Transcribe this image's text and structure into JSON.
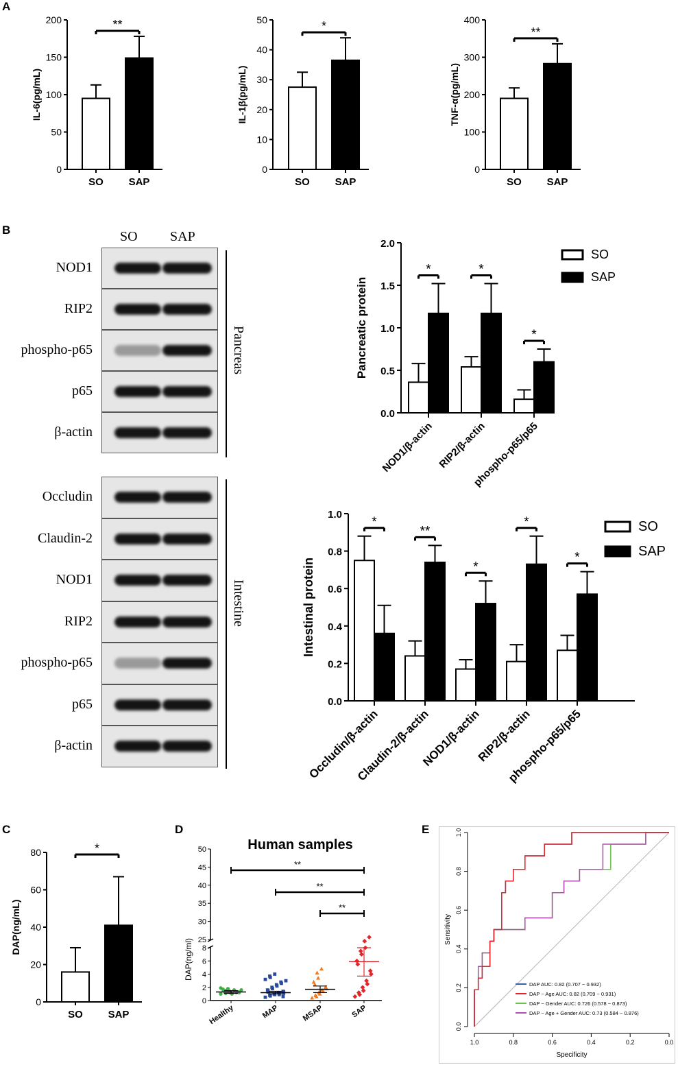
{
  "panel_labels": {
    "A": "A",
    "B": "B",
    "C": "C",
    "D": "D",
    "E": "E"
  },
  "blot": {
    "columns": [
      "SO",
      "SAP"
    ],
    "pancreas_label": "Pancreas",
    "intestine_label": "Intestine",
    "pancreas_rows": [
      "NOD1",
      "RIP2",
      "phospho-p65",
      "p65",
      "β-actin"
    ],
    "intestine_rows": [
      "Occludin",
      "Claudin-2",
      "NOD1",
      "RIP2",
      "phospho-p65",
      "p65",
      "β-actin"
    ]
  },
  "chart_data": [
    {
      "id": "A1",
      "type": "bar",
      "ylabel": "IL-6(pg/mL)",
      "ylim": [
        0,
        200
      ],
      "yticks": [
        0,
        50,
        100,
        150,
        200
      ],
      "categories": [
        "SO",
        "SAP"
      ],
      "values": [
        95,
        149
      ],
      "errors": [
        18,
        29
      ],
      "significance": [
        "**"
      ]
    },
    {
      "id": "A2",
      "type": "bar",
      "ylabel": "IL-1β(pg/mL)",
      "ylim": [
        0,
        50
      ],
      "yticks": [
        0,
        10,
        20,
        30,
        40,
        50
      ],
      "categories": [
        "SO",
        "SAP"
      ],
      "values": [
        27.5,
        36.5
      ],
      "errors": [
        5,
        7.5
      ],
      "significance": [
        "*"
      ]
    },
    {
      "id": "A3",
      "type": "bar",
      "ylabel": "TNF-α(pg/mL)",
      "ylim": [
        0,
        400
      ],
      "yticks": [
        0,
        100,
        200,
        300,
        400
      ],
      "categories": [
        "SO",
        "SAP"
      ],
      "values": [
        190,
        283
      ],
      "errors": [
        28,
        53
      ],
      "significance": [
        "**"
      ]
    },
    {
      "id": "B1",
      "type": "bar",
      "ylabel": "Pancreatic protein",
      "ylim": [
        0,
        2.0
      ],
      "yticks": [
        "0.0",
        "0.5",
        "1.0",
        "1.5",
        "2.0"
      ],
      "categories": [
        "NOD1/β-actin",
        "RIP2/β-actin",
        "phospho-p65/p65"
      ],
      "series": [
        {
          "name": "SO",
          "values": [
            0.36,
            0.54,
            0.16
          ],
          "errors": [
            0.22,
            0.12,
            0.11
          ]
        },
        {
          "name": "SAP",
          "values": [
            1.17,
            1.17,
            0.6
          ],
          "errors": [
            0.35,
            0.35,
            0.15
          ]
        }
      ],
      "significance": [
        "*",
        "*",
        "*"
      ]
    },
    {
      "id": "B2",
      "type": "bar",
      "ylabel": "Intestinal protein",
      "ylim": [
        0,
        1.0
      ],
      "yticks": [
        "0.0",
        "0.2",
        "0.4",
        "0.6",
        "0.8",
        "1.0"
      ],
      "categories": [
        "Occludin/β-actin",
        "Claudin-2/β-actin",
        "NOD1/β-actin",
        "RIP2/β-actin",
        "phospho-p65/p65"
      ],
      "series": [
        {
          "name": "SO",
          "values": [
            0.75,
            0.24,
            0.17,
            0.21,
            0.27
          ],
          "errors": [
            0.13,
            0.08,
            0.05,
            0.09,
            0.08
          ]
        },
        {
          "name": "SAP",
          "values": [
            0.36,
            0.74,
            0.52,
            0.73,
            0.57
          ],
          "errors": [
            0.15,
            0.09,
            0.12,
            0.15,
            0.12
          ]
        }
      ],
      "significance": [
        "*",
        "**",
        "*",
        "*",
        "*"
      ]
    },
    {
      "id": "C",
      "type": "bar",
      "ylabel": "DAP(ng/mL)",
      "ylim": [
        0,
        80
      ],
      "yticks": [
        0,
        20,
        40,
        60,
        80
      ],
      "categories": [
        "SO",
        "SAP"
      ],
      "values": [
        16,
        41
      ],
      "errors": [
        13,
        26
      ],
      "significance": [
        "*"
      ]
    },
    {
      "id": "D",
      "type": "scatter",
      "title": "Human samples",
      "ylabel": "DAP(ng/ml)",
      "yticks_low": [
        0,
        2,
        4,
        6,
        8
      ],
      "yticks_high": [
        25,
        30,
        35,
        40,
        45,
        50
      ],
      "categories": [
        "Healthy",
        "MAP",
        "MSAP",
        "SAP"
      ],
      "colors": [
        "#3fae49",
        "#2b4a9b",
        "#f07a20",
        "#e3252b"
      ],
      "means": [
        1.3,
        1.2,
        1.7,
        5.9
      ],
      "sem_low": [
        1.1,
        1.0,
        1.2,
        3.7
      ],
      "sem_high": [
        1.5,
        1.4,
        2.2,
        8.0
      ],
      "points": [
        [
          1.0,
          1.1,
          1.2,
          1.3,
          1.4,
          1.5,
          1.6,
          1.2,
          1.3,
          1.5,
          1.7,
          1.8,
          1.4,
          1.1,
          1.0,
          1.3,
          1.2,
          1.6,
          1.9,
          1.5,
          1.4,
          1.3,
          1.2
        ],
        [
          0.5,
          0.7,
          0.8,
          0.9,
          1.0,
          1.1,
          1.2,
          1.3,
          1.4,
          1.5,
          1.6,
          1.8,
          2.0,
          2.2,
          2.4,
          2.6,
          2.8,
          3.0,
          3.2,
          3.5,
          3.7,
          4.0,
          1.0,
          0.9,
          1.2,
          1.1,
          0.6,
          1.3
        ],
        [
          0.4,
          0.6,
          0.8,
          1.0,
          1.2,
          1.4,
          1.6,
          1.8,
          2.0,
          2.4,
          2.8,
          3.4,
          4.2,
          4.8
        ],
        [
          0.6,
          0.9,
          1.2,
          1.5,
          2.0,
          2.5,
          3.0,
          4.0,
          4.5,
          5.5,
          6.0,
          7.0,
          7.5,
          8.0,
          9.0,
          9.6
        ]
      ],
      "significance_pairs": [
        [
          "Healthy",
          "SAP",
          "**"
        ],
        [
          "MAP",
          "SAP",
          "**"
        ],
        [
          "MSAP",
          "SAP",
          "**"
        ]
      ]
    },
    {
      "id": "E",
      "type": "line",
      "xlabel": "Specificity",
      "ylabel": "Sensitivity",
      "xticks": [
        "1.0",
        "0.8",
        "0.6",
        "0.4",
        "0.2",
        "0.0"
      ],
      "yticks": [
        "0.0",
        "0.2",
        "0.4",
        "0.6",
        "0.8",
        "1.0"
      ],
      "series": [
        {
          "name": "DAP AUC: 0.82 (0.707 ~ 0.932)",
          "color": "#3a5fa8",
          "x": [
            1.0,
            1.0,
            0.98,
            0.98,
            0.96,
            0.96,
            0.92,
            0.92,
            0.9,
            0.9,
            0.86,
            0.86,
            0.84,
            0.84,
            0.8,
            0.8,
            0.74,
            0.74,
            0.64,
            0.64,
            0.5,
            0.5,
            0.24,
            0.24,
            0.0
          ],
          "y": [
            0.0,
            0.19,
            0.19,
            0.25,
            0.25,
            0.31,
            0.31,
            0.44,
            0.44,
            0.5,
            0.5,
            0.69,
            0.69,
            0.75,
            0.75,
            0.81,
            0.81,
            0.88,
            0.88,
            0.94,
            0.94,
            1.0,
            1.0,
            1.0,
            1.0
          ]
        },
        {
          "name": "DAP ~ Age AUC: 0.82 (0.709 ~ 0.931)",
          "color": "#e3252b",
          "x": [
            1.0,
            1.0,
            0.98,
            0.98,
            0.96,
            0.96,
            0.92,
            0.92,
            0.9,
            0.9,
            0.86,
            0.86,
            0.84,
            0.84,
            0.8,
            0.8,
            0.74,
            0.74,
            0.64,
            0.64,
            0.5,
            0.5,
            0.24,
            0.24,
            0.0
          ],
          "y": [
            0.0,
            0.19,
            0.19,
            0.25,
            0.25,
            0.31,
            0.31,
            0.44,
            0.44,
            0.5,
            0.5,
            0.69,
            0.69,
            0.75,
            0.75,
            0.81,
            0.81,
            0.88,
            0.88,
            0.94,
            0.94,
            1.0,
            1.0,
            1.0,
            1.0
          ]
        },
        {
          "name": "DAP ~ Gender AUC: 0.726 (0.578 ~ 0.873)",
          "color": "#6cbf4a",
          "x": [
            1.0,
            1.0,
            0.98,
            0.98,
            0.96,
            0.96,
            0.92,
            0.92,
            0.9,
            0.9,
            0.74,
            0.74,
            0.6,
            0.6,
            0.54,
            0.54,
            0.46,
            0.46,
            0.3,
            0.3,
            0.12,
            0.12,
            0.0
          ],
          "y": [
            0.0,
            0.19,
            0.19,
            0.31,
            0.31,
            0.38,
            0.38,
            0.44,
            0.44,
            0.5,
            0.5,
            0.56,
            0.56,
            0.69,
            0.69,
            0.75,
            0.75,
            0.81,
            0.81,
            0.94,
            0.94,
            1.0,
            1.0
          ]
        },
        {
          "name": "DAP ~ Age + Gender AUC: 0.73 (0.584 ~ 0.876)",
          "color": "#b04fb0",
          "x": [
            1.0,
            1.0,
            0.98,
            0.98,
            0.96,
            0.96,
            0.92,
            0.92,
            0.9,
            0.9,
            0.74,
            0.74,
            0.6,
            0.6,
            0.54,
            0.54,
            0.46,
            0.46,
            0.34,
            0.34,
            0.12,
            0.12,
            0.0
          ],
          "y": [
            0.0,
            0.19,
            0.19,
            0.31,
            0.31,
            0.38,
            0.38,
            0.44,
            0.44,
            0.5,
            0.5,
            0.56,
            0.56,
            0.69,
            0.69,
            0.75,
            0.75,
            0.81,
            0.81,
            0.94,
            0.94,
            1.0,
            1.0
          ]
        }
      ]
    }
  ]
}
